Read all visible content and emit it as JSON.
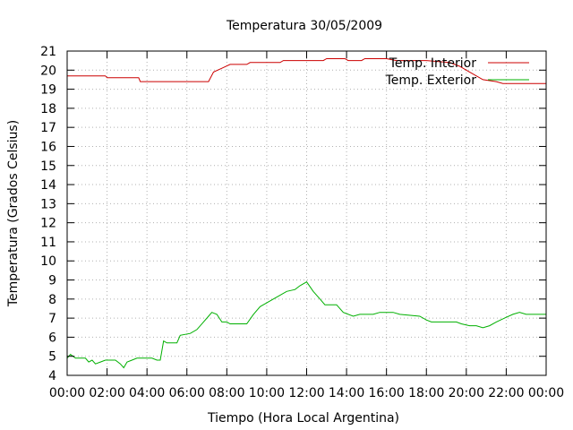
{
  "chart_data": {
    "type": "line",
    "title": "Temperatura 30/05/2009",
    "xlabel": "Tiempo (Hora Local Argentina)",
    "ylabel": "Temperatura (Grados Celsius)",
    "xlim": [
      "00:00",
      "24:00"
    ],
    "ylim": [
      4,
      21
    ],
    "xticks": [
      "00:00",
      "02:00",
      "04:00",
      "06:00",
      "08:00",
      "10:00",
      "12:00",
      "14:00",
      "16:00",
      "18:00",
      "20:00",
      "22:00",
      "00:00"
    ],
    "yticks": [
      4,
      5,
      6,
      7,
      8,
      9,
      10,
      11,
      12,
      13,
      14,
      15,
      16,
      17,
      18,
      19,
      20,
      21
    ],
    "grid": true,
    "legend_position": "top-right",
    "series": [
      {
        "name": "Temp. Interior",
        "color": "#cc0000",
        "points": [
          [
            "00:00",
            19.7
          ],
          [
            "01:55",
            19.7
          ],
          [
            "02:00",
            19.6
          ],
          [
            "03:35",
            19.6
          ],
          [
            "03:40",
            19.4
          ],
          [
            "07:05",
            19.4
          ],
          [
            "07:20",
            19.9
          ],
          [
            "07:45",
            20.1
          ],
          [
            "08:10",
            20.3
          ],
          [
            "09:00",
            20.3
          ],
          [
            "09:10",
            20.4
          ],
          [
            "10:40",
            20.4
          ],
          [
            "10:50",
            20.5
          ],
          [
            "12:00",
            20.5
          ],
          [
            "12:50",
            20.5
          ],
          [
            "13:00",
            20.6
          ],
          [
            "13:55",
            20.6
          ],
          [
            "14:05",
            20.5
          ],
          [
            "14:45",
            20.5
          ],
          [
            "14:55",
            20.6
          ],
          [
            "16:00",
            20.6
          ],
          [
            "16:30",
            20.5
          ],
          [
            "18:00",
            20.5
          ],
          [
            "19:10",
            20.4
          ],
          [
            "19:40",
            20.2
          ],
          [
            "20:10",
            19.9
          ],
          [
            "20:50",
            19.5
          ],
          [
            "21:30",
            19.4
          ],
          [
            "21:50",
            19.3
          ],
          [
            "24:00",
            19.3
          ]
        ]
      },
      {
        "name": "Temp. Exterior",
        "color": "#00b000",
        "points": [
          [
            "00:00",
            4.9
          ],
          [
            "00:10",
            5.1
          ],
          [
            "00:25",
            4.9
          ],
          [
            "00:55",
            4.9
          ],
          [
            "01:05",
            4.7
          ],
          [
            "01:15",
            4.8
          ],
          [
            "01:25",
            4.6
          ],
          [
            "01:40",
            4.7
          ],
          [
            "01:55",
            4.8
          ],
          [
            "02:25",
            4.8
          ],
          [
            "02:40",
            4.6
          ],
          [
            "02:50",
            4.4
          ],
          [
            "03:00",
            4.7
          ],
          [
            "03:15",
            4.8
          ],
          [
            "03:30",
            4.9
          ],
          [
            "04:15",
            4.9
          ],
          [
            "04:30",
            4.8
          ],
          [
            "04:40",
            4.8
          ],
          [
            "04:50",
            5.8
          ],
          [
            "05:00",
            5.7
          ],
          [
            "05:30",
            5.7
          ],
          [
            "05:40",
            6.1
          ],
          [
            "06:10",
            6.2
          ],
          [
            "06:30",
            6.4
          ],
          [
            "06:50",
            6.8
          ],
          [
            "07:05",
            7.1
          ],
          [
            "07:15",
            7.3
          ],
          [
            "07:30",
            7.2
          ],
          [
            "07:45",
            6.8
          ],
          [
            "08:00",
            6.8
          ],
          [
            "08:10",
            6.7
          ],
          [
            "08:30",
            6.7
          ],
          [
            "09:00",
            6.7
          ],
          [
            "09:20",
            7.2
          ],
          [
            "09:40",
            7.6
          ],
          [
            "10:00",
            7.8
          ],
          [
            "10:20",
            8.0
          ],
          [
            "10:40",
            8.2
          ],
          [
            "11:00",
            8.4
          ],
          [
            "11:25",
            8.5
          ],
          [
            "11:40",
            8.7
          ],
          [
            "12:00",
            8.9
          ],
          [
            "12:20",
            8.4
          ],
          [
            "12:40",
            8.0
          ],
          [
            "12:55",
            7.7
          ],
          [
            "13:30",
            7.7
          ],
          [
            "13:50",
            7.3
          ],
          [
            "14:20",
            7.1
          ],
          [
            "14:40",
            7.2
          ],
          [
            "15:20",
            7.2
          ],
          [
            "15:40",
            7.3
          ],
          [
            "16:20",
            7.3
          ],
          [
            "16:40",
            7.2
          ],
          [
            "17:40",
            7.1
          ],
          [
            "18:00",
            6.9
          ],
          [
            "18:15",
            6.8
          ],
          [
            "19:30",
            6.8
          ],
          [
            "19:45",
            6.7
          ],
          [
            "20:10",
            6.6
          ],
          [
            "20:30",
            6.6
          ],
          [
            "20:50",
            6.5
          ],
          [
            "21:10",
            6.6
          ],
          [
            "21:30",
            6.8
          ],
          [
            "21:55",
            7.0
          ],
          [
            "22:20",
            7.2
          ],
          [
            "22:40",
            7.3
          ],
          [
            "23:00",
            7.2
          ],
          [
            "24:00",
            7.2
          ]
        ]
      }
    ]
  }
}
